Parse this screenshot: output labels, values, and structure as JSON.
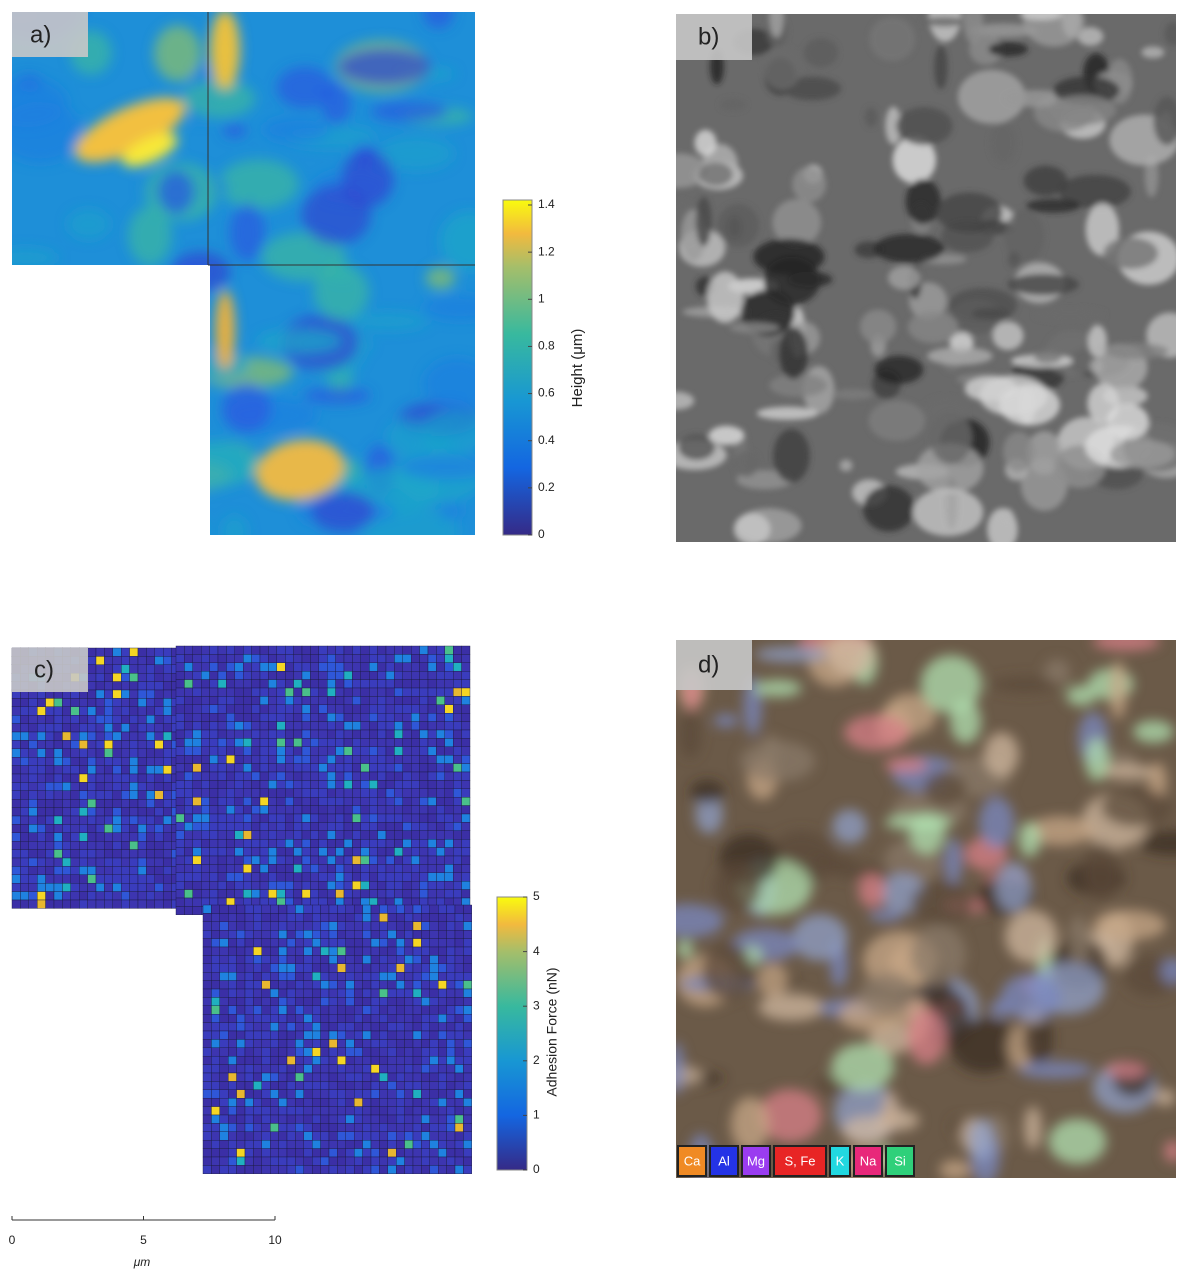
{
  "panels": [
    {
      "label": "a)"
    },
    {
      "label": "b)"
    },
    {
      "label": "c)"
    },
    {
      "label": "d)"
    }
  ],
  "height_colorbar": {
    "label": "Height (μm)",
    "lim": [
      0,
      1.4
    ],
    "ticks": [
      0,
      0.2,
      0.4,
      0.6,
      0.8,
      1,
      1.2,
      1.4
    ]
  },
  "adhesion_colorbar": {
    "label": "Adhesion Force (nN)",
    "lim": [
      0,
      5
    ],
    "ticks": [
      0,
      1,
      2,
      3,
      4,
      5
    ]
  },
  "scale_bar": {
    "label": "μm",
    "lim": [
      0,
      10
    ],
    "ticks": [
      0,
      5,
      10
    ]
  },
  "eds_legend": [
    {
      "label": "Ca",
      "color": "#f08a24"
    },
    {
      "label": "Al",
      "color": "#2433e6"
    },
    {
      "label": "Mg",
      "color": "#9a3cf0"
    },
    {
      "label": "S, Fe",
      "color": "#e82525"
    },
    {
      "label": "K",
      "color": "#22d8e0"
    },
    {
      "label": "Na",
      "color": "#e8287a"
    },
    {
      "label": "Si",
      "color": "#2fd07a"
    }
  ]
}
